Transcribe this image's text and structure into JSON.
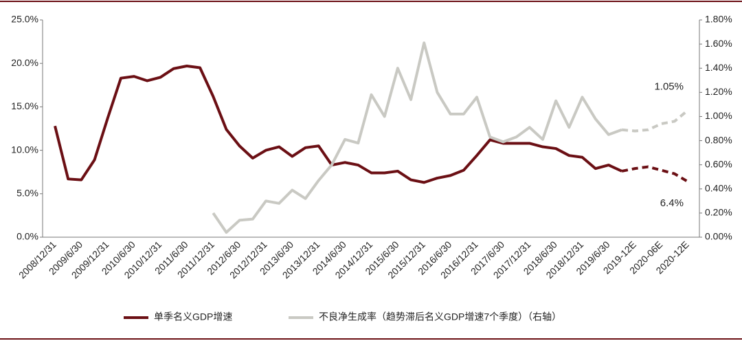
{
  "chart_data": {
    "type": "line",
    "categories": [
      "2008/12/31",
      null,
      "2009/6/30",
      null,
      "2009/12/31",
      null,
      "2010/6/30",
      null,
      "2010/12/31",
      null,
      "2011/6/30",
      null,
      "2011/12/31",
      null,
      "2012/6/30",
      null,
      "2012/12/31",
      null,
      "2013/6/30",
      null,
      "2013/12/31",
      null,
      "2014/6/30",
      null,
      "2014/12/31",
      null,
      "2015/6/30",
      null,
      "2015/12/31",
      null,
      "2016/6/30",
      null,
      "2016/12/31",
      null,
      "2017/6/30",
      null,
      "2017/12/31",
      null,
      "2018/6/30",
      null,
      "2018/12/31",
      null,
      "2019/6/30",
      null,
      "2019-12E",
      null,
      "2020-06E",
      null,
      "2020-12E"
    ],
    "series": [
      {
        "name": "单季名义GDP增速",
        "color": "#6b0f14",
        "dashed_from_index": 43,
        "values": [
          12.8,
          6.7,
          6.6,
          8.9,
          13.7,
          18.3,
          18.5,
          18.0,
          18.4,
          19.4,
          19.7,
          19.5,
          16.2,
          12.4,
          10.5,
          9.1,
          10.0,
          10.4,
          9.3,
          10.3,
          10.5,
          8.3,
          8.6,
          8.3,
          7.4,
          7.4,
          7.6,
          6.6,
          6.3,
          6.8,
          7.1,
          7.7,
          9.4,
          11.2,
          10.8,
          10.8,
          10.8,
          10.4,
          10.2,
          9.4,
          9.2,
          7.9,
          8.3,
          7.6,
          7.9,
          8.1,
          7.7,
          7.3,
          6.4
        ]
      },
      {
        "name": "不良净生成率（趋势滞后名义GDP增速7个季度）（右轴）",
        "color": "#c9c9c3",
        "axis": "y2",
        "dashed_from_index": 43,
        "values": [
          null,
          null,
          null,
          null,
          null,
          null,
          null,
          null,
          null,
          null,
          null,
          null,
          0.2,
          0.04,
          0.14,
          0.15,
          0.3,
          0.28,
          0.39,
          0.32,
          0.47,
          0.6,
          0.81,
          0.78,
          1.18,
          1.0,
          1.4,
          1.14,
          1.61,
          1.2,
          1.02,
          1.02,
          1.16,
          0.83,
          0.79,
          0.83,
          0.91,
          0.81,
          1.13,
          0.91,
          1.16,
          0.98,
          0.85,
          0.89,
          0.88,
          0.89,
          0.94,
          0.96,
          1.05
        ]
      }
    ],
    "annotations": [
      {
        "text": "1.05%",
        "series": 1,
        "index": 48
      },
      {
        "text": "6.4%",
        "series": 0,
        "index": 48
      }
    ],
    "ylim": [
      0,
      25
    ],
    "yticks": [
      {
        "value": 0,
        "label": "0.0%"
      },
      {
        "value": 5,
        "label": "5.0%"
      },
      {
        "value": 10,
        "label": "10.0%"
      },
      {
        "value": 15,
        "label": "15.0%"
      },
      {
        "value": 20,
        "label": "20.0%"
      },
      {
        "value": 25,
        "label": "25.0%"
      }
    ],
    "y2lim": [
      0,
      1.8
    ],
    "y2ticks": [
      {
        "value": 0,
        "label": "0.00%"
      },
      {
        "value": 0.2,
        "label": "0.20%"
      },
      {
        "value": 0.4,
        "label": "0.40%"
      },
      {
        "value": 0.6,
        "label": "0.60%"
      },
      {
        "value": 0.8,
        "label": "0.80%"
      },
      {
        "value": 1.0,
        "label": "1.00%"
      },
      {
        "value": 1.2,
        "label": "1.20%"
      },
      {
        "value": 1.4,
        "label": "1.40%"
      },
      {
        "value": 1.6,
        "label": "1.60%"
      },
      {
        "value": 1.8,
        "label": "1.80%"
      }
    ],
    "grid": false
  }
}
